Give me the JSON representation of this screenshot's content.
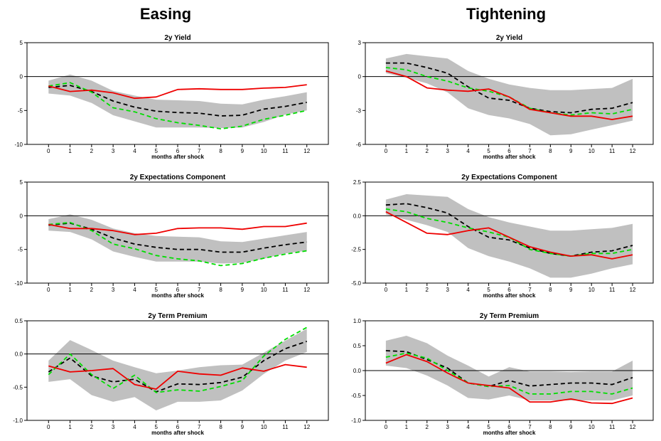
{
  "headers": [
    "Easing",
    "Tightening"
  ],
  "x_label": "months after shock",
  "colors": {
    "band": "#c0c0c0",
    "black": "#000000",
    "green": "#00dd00",
    "red": "#ee0000"
  },
  "chart_data": [
    {
      "type": "line",
      "title": "2y Yield",
      "column": "Easing",
      "xlabel": "months after shock",
      "ylim": [
        -10,
        5
      ],
      "yticks": [
        5,
        0,
        -5,
        -10
      ],
      "yticklabels": [
        "5",
        "0",
        "-5",
        "-10"
      ],
      "x": [
        0,
        1,
        2,
        3,
        4,
        5,
        6,
        7,
        8,
        9,
        10,
        11,
        12
      ],
      "band_upper": [
        -0.6,
        0.3,
        -0.6,
        -2.1,
        -2.8,
        -3.4,
        -3.5,
        -3.6,
        -4.0,
        -4.1,
        -3.4,
        -2.9,
        -2.3
      ],
      "band_lower": [
        -2.5,
        -2.8,
        -3.9,
        -5.7,
        -6.6,
        -7.5,
        -7.5,
        -7.5,
        -7.6,
        -7.5,
        -6.7,
        -5.6,
        -5.0
      ],
      "series": [
        {
          "color": "black",
          "dash": "dashed",
          "values": [
            -1.6,
            -1.3,
            -2.2,
            -3.6,
            -4.5,
            -5.1,
            -5.3,
            -5.4,
            -5.8,
            -5.7,
            -4.8,
            -4.4,
            -3.8
          ]
        },
        {
          "color": "green",
          "dash": "dashed",
          "values": [
            -1.4,
            -0.9,
            -2.3,
            -4.6,
            -5.2,
            -6.2,
            -6.8,
            -7.2,
            -7.7,
            -7.3,
            -6.3,
            -5.7,
            -5.0
          ]
        },
        {
          "color": "red",
          "dash": "solid",
          "values": [
            -1.4,
            -2.2,
            -2.0,
            -2.4,
            -3.2,
            -3.0,
            -1.9,
            -1.8,
            -1.9,
            -1.9,
            -1.7,
            -1.6,
            -1.2
          ]
        }
      ]
    },
    {
      "type": "line",
      "title": "2y Yield",
      "column": "Tightening",
      "xlabel": "months after shock",
      "ylim": [
        -6,
        3
      ],
      "yticks": [
        3,
        0,
        -3,
        -6
      ],
      "yticklabels": [
        "3",
        "0",
        "-3",
        "-6"
      ],
      "x": [
        0,
        1,
        2,
        3,
        4,
        5,
        6,
        7,
        8,
        9,
        10,
        11,
        12
      ],
      "band_upper": [
        1.6,
        2.0,
        1.8,
        1.6,
        0.5,
        -0.2,
        -0.7,
        -1.0,
        -1.2,
        -1.2,
        -1.1,
        -1.0,
        -0.2
      ],
      "band_lower": [
        0.3,
        -0.1,
        -0.6,
        -1.4,
        -2.8,
        -3.4,
        -3.7,
        -4.2,
        -5.2,
        -5.1,
        -4.7,
        -4.3,
        -3.9
      ],
      "series": [
        {
          "color": "black",
          "dash": "dashed",
          "values": [
            1.2,
            1.2,
            0.8,
            0.3,
            -0.9,
            -1.9,
            -2.1,
            -2.8,
            -3.1,
            -3.2,
            -2.9,
            -2.8,
            -2.3
          ]
        },
        {
          "color": "green",
          "dash": "dashed",
          "values": [
            0.8,
            0.6,
            0.0,
            -0.4,
            -1.0,
            -1.3,
            -1.8,
            -2.8,
            -3.2,
            -3.4,
            -3.2,
            -3.3,
            -2.9
          ]
        },
        {
          "color": "red",
          "dash": "solid",
          "values": [
            0.5,
            0.0,
            -1.0,
            -1.2,
            -1.3,
            -1.1,
            -1.8,
            -2.9,
            -3.2,
            -3.5,
            -3.5,
            -3.8,
            -3.5
          ]
        }
      ]
    },
    {
      "type": "line",
      "title": "2y Expectations Component",
      "column": "Easing",
      "xlabel": "months after shock",
      "ylim": [
        -10,
        5
      ],
      "yticks": [
        5,
        0,
        -5,
        -10
      ],
      "yticklabels": [
        "5",
        "0",
        "-5",
        "-10"
      ],
      "x": [
        0,
        1,
        2,
        3,
        4,
        5,
        6,
        7,
        8,
        9,
        10,
        11,
        12
      ],
      "band_upper": [
        -0.5,
        0.2,
        -0.6,
        -1.9,
        -2.6,
        -3.0,
        -3.1,
        -3.2,
        -3.8,
        -3.9,
        -3.4,
        -2.9,
        -2.4
      ],
      "band_lower": [
        -2.2,
        -2.4,
        -3.5,
        -5.3,
        -6.1,
        -6.8,
        -6.8,
        -6.8,
        -7.1,
        -7.0,
        -6.4,
        -5.6,
        -5.2
      ],
      "series": [
        {
          "color": "black",
          "dash": "dashed",
          "values": [
            -1.4,
            -1.1,
            -2.0,
            -3.3,
            -4.2,
            -4.7,
            -5.0,
            -5.0,
            -5.4,
            -5.4,
            -4.8,
            -4.3,
            -3.9
          ]
        },
        {
          "color": "green",
          "dash": "dashed",
          "values": [
            -1.3,
            -1.0,
            -2.2,
            -4.2,
            -4.9,
            -5.9,
            -6.4,
            -6.7,
            -7.4,
            -7.1,
            -6.3,
            -5.7,
            -5.2
          ]
        },
        {
          "color": "red",
          "dash": "solid",
          "values": [
            -1.3,
            -1.9,
            -1.9,
            -2.2,
            -2.8,
            -2.6,
            -1.9,
            -1.8,
            -1.8,
            -2.0,
            -1.6,
            -1.6,
            -1.1
          ]
        }
      ]
    },
    {
      "type": "line",
      "title": "2y Expectations Component",
      "column": "Tightening",
      "xlabel": "months after shock",
      "ylim": [
        -5,
        2.5
      ],
      "yticks": [
        2.5,
        0,
        -2.5,
        -5
      ],
      "yticklabels": [
        "2.5",
        "0.0",
        "-2.5",
        "-5.0"
      ],
      "x": [
        0,
        1,
        2,
        3,
        4,
        5,
        6,
        7,
        8,
        9,
        10,
        11,
        12
      ],
      "band_upper": [
        1.2,
        1.6,
        1.5,
        1.4,
        0.5,
        -0.1,
        -0.5,
        -0.8,
        -1.1,
        -1.1,
        -1.0,
        -0.9,
        -0.6
      ],
      "band_lower": [
        0.1,
        -0.3,
        -0.7,
        -1.2,
        -2.4,
        -3.0,
        -3.4,
        -3.9,
        -4.6,
        -4.6,
        -4.3,
        -3.9,
        -3.6
      ],
      "series": [
        {
          "color": "black",
          "dash": "dashed",
          "values": [
            0.8,
            0.9,
            0.6,
            0.2,
            -0.8,
            -1.6,
            -1.8,
            -2.4,
            -2.8,
            -3.0,
            -2.7,
            -2.6,
            -2.2
          ]
        },
        {
          "color": "green",
          "dash": "dashed",
          "values": [
            0.5,
            0.3,
            -0.2,
            -0.5,
            -0.9,
            -1.2,
            -1.6,
            -2.5,
            -2.8,
            -3.0,
            -2.8,
            -2.8,
            -2.5
          ]
        },
        {
          "color": "red",
          "dash": "solid",
          "values": [
            0.3,
            -0.5,
            -1.3,
            -1.4,
            -1.1,
            -0.9,
            -1.6,
            -2.3,
            -2.7,
            -3.0,
            -2.9,
            -3.2,
            -2.9
          ]
        }
      ]
    },
    {
      "type": "line",
      "title": "2y Term Premium",
      "column": "Easing",
      "xlabel": "months after shock",
      "ylim": [
        -1.0,
        0.5
      ],
      "yticks": [
        0.5,
        0,
        -0.5,
        -1.0
      ],
      "yticklabels": [
        "0.5",
        "0.0",
        "-0.5",
        "-1.0"
      ],
      "x": [
        0,
        1,
        2,
        3,
        4,
        5,
        6,
        7,
        8,
        9,
        10,
        11,
        12
      ],
      "band_upper": [
        -0.1,
        0.21,
        0.06,
        -0.1,
        -0.2,
        -0.29,
        -0.25,
        -0.2,
        -0.17,
        -0.16,
        0.02,
        0.2,
        0.38
      ],
      "band_lower": [
        -0.42,
        -0.38,
        -0.62,
        -0.72,
        -0.65,
        -0.85,
        -0.72,
        -0.72,
        -0.7,
        -0.55,
        -0.3,
        -0.1,
        0.03
      ],
      "series": [
        {
          "color": "black",
          "dash": "dashed",
          "values": [
            -0.27,
            -0.06,
            -0.33,
            -0.42,
            -0.38,
            -0.57,
            -0.45,
            -0.46,
            -0.43,
            -0.35,
            -0.1,
            0.08,
            0.19
          ]
        },
        {
          "color": "green",
          "dash": "dashed",
          "values": [
            -0.31,
            0.0,
            -0.31,
            -0.52,
            -0.32,
            -0.58,
            -0.54,
            -0.56,
            -0.49,
            -0.4,
            -0.03,
            0.22,
            0.4
          ]
        },
        {
          "color": "red",
          "dash": "solid",
          "values": [
            -0.18,
            -0.27,
            -0.25,
            -0.22,
            -0.46,
            -0.53,
            -0.26,
            -0.3,
            -0.32,
            -0.21,
            -0.26,
            -0.16,
            -0.2
          ]
        }
      ]
    },
    {
      "type": "line",
      "title": "2y Term Premium",
      "column": "Tightening",
      "xlabel": "months after shock",
      "ylim": [
        -1.0,
        1.0
      ],
      "yticks": [
        1.0,
        0.5,
        0,
        -0.5,
        -1.0
      ],
      "yticklabels": [
        "1.0",
        "0.5",
        "0.0",
        "-0.5",
        "-1.0"
      ],
      "x": [
        0,
        1,
        2,
        3,
        4,
        5,
        6,
        7,
        8,
        9,
        10,
        11,
        12
      ],
      "band_upper": [
        0.6,
        0.7,
        0.55,
        0.3,
        0.1,
        -0.12,
        0.07,
        -0.02,
        -0.02,
        -0.03,
        -0.02,
        -0.02,
        0.2
      ],
      "band_lower": [
        0.1,
        0.05,
        -0.1,
        -0.3,
        -0.55,
        -0.58,
        -0.5,
        -0.6,
        -0.6,
        -0.6,
        -0.6,
        -0.6,
        -0.5
      ],
      "series": [
        {
          "color": "black",
          "dash": "dashed",
          "values": [
            0.4,
            0.38,
            0.22,
            0.05,
            -0.25,
            -0.32,
            -0.2,
            -0.31,
            -0.28,
            -0.25,
            -0.25,
            -0.28,
            -0.14
          ]
        },
        {
          "color": "green",
          "dash": "dashed",
          "values": [
            0.27,
            0.35,
            0.25,
            0.0,
            -0.25,
            -0.32,
            -0.3,
            -0.47,
            -0.47,
            -0.42,
            -0.42,
            -0.47,
            -0.35
          ]
        },
        {
          "color": "red",
          "dash": "solid",
          "values": [
            0.15,
            0.32,
            0.18,
            -0.05,
            -0.25,
            -0.3,
            -0.35,
            -0.63,
            -0.63,
            -0.57,
            -0.65,
            -0.66,
            -0.55
          ]
        }
      ]
    }
  ]
}
